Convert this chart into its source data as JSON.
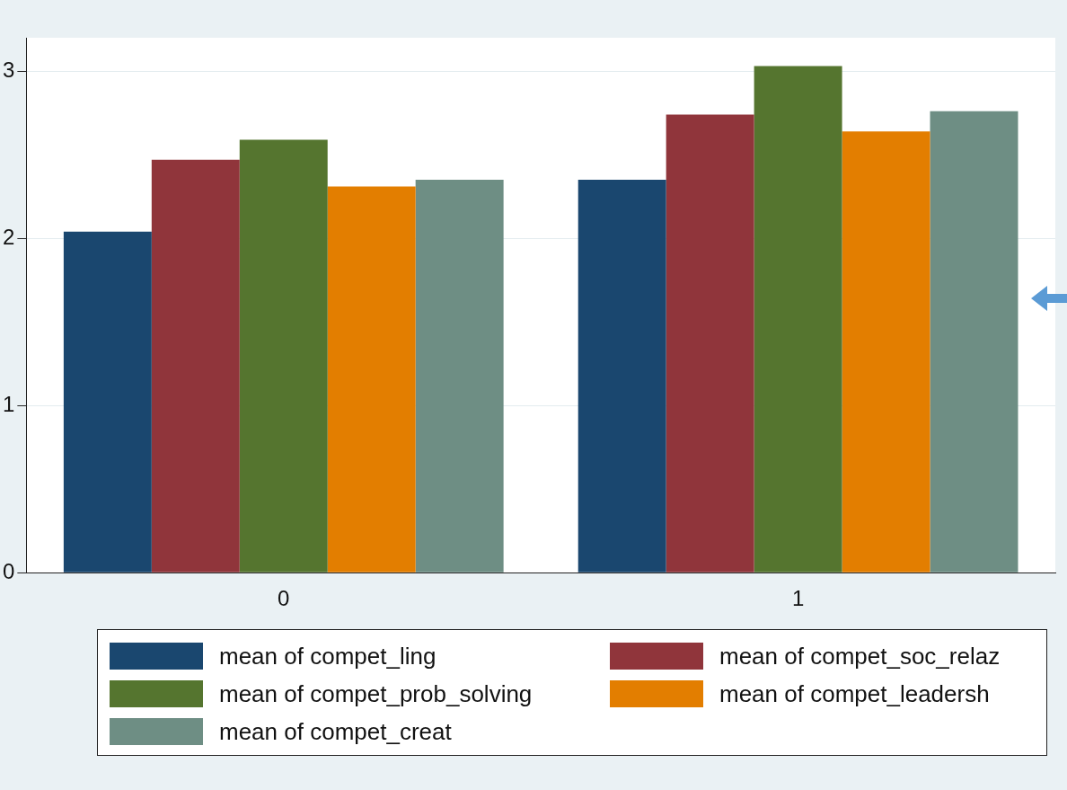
{
  "chart_data": {
    "type": "bar",
    "categories": [
      "0",
      "1"
    ],
    "series": [
      {
        "name": "mean of compet_ling",
        "color": "#1a476f",
        "values": [
          2.04,
          2.35
        ]
      },
      {
        "name": "mean of compet_soc_relaz",
        "color": "#90353b",
        "values": [
          2.47,
          2.74
        ]
      },
      {
        "name": "mean of compet_prob_solving",
        "color": "#55752f",
        "values": [
          2.59,
          3.03
        ]
      },
      {
        "name": "mean of compet_leadersh",
        "color": "#e37e00",
        "values": [
          2.31,
          2.64
        ]
      },
      {
        "name": "mean of compet_creat",
        "color": "#6e8e84",
        "values": [
          2.35,
          2.76
        ]
      }
    ],
    "ylim": [
      0,
      3.2
    ],
    "yticks": [
      0,
      1,
      2,
      3
    ],
    "grid": "y",
    "legend": "bottom"
  }
}
